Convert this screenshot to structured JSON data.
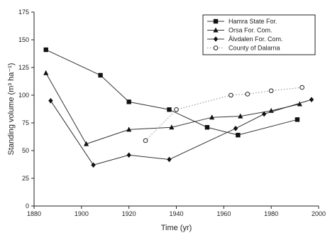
{
  "chart_data": {
    "type": "line",
    "xlabel": "Time (yr)",
    "ylabel": "Standing volume (m³ ha⁻¹)",
    "xlim": [
      1880,
      2000
    ],
    "ylim": [
      0,
      175
    ],
    "xticks": [
      1880,
      1900,
      1920,
      1940,
      1960,
      1980,
      2000
    ],
    "yticks": [
      0,
      25,
      50,
      75,
      100,
      125,
      150,
      175
    ],
    "grid": false,
    "legend_position": "top-right",
    "series": [
      {
        "name": "Hamra State For.",
        "marker": "square",
        "line": "solid",
        "x": [
          1885,
          1908,
          1920,
          1937,
          1953,
          1966,
          1991
        ],
        "y": [
          141,
          118,
          94,
          87,
          71,
          64,
          78
        ]
      },
      {
        "name": "Orsa For. Com.",
        "marker": "triangle",
        "line": "solid",
        "x": [
          1885,
          1902,
          1920,
          1938,
          1955,
          1967,
          1980,
          1992
        ],
        "y": [
          120,
          56,
          69,
          71,
          80,
          81,
          86,
          92
        ]
      },
      {
        "name": "Älvdalen For. Com.",
        "marker": "diamond",
        "line": "solid",
        "x": [
          1887,
          1905,
          1920,
          1937,
          1965,
          1977,
          1997
        ],
        "y": [
          95,
          37,
          46,
          42,
          70,
          83,
          96
        ]
      },
      {
        "name": "County of Dalarna",
        "marker": "open-circle",
        "line": "dotted",
        "x": [
          1927,
          1940,
          1963,
          1970,
          1980,
          1993
        ],
        "y": [
          59,
          87,
          100,
          101,
          104,
          107
        ]
      }
    ]
  }
}
